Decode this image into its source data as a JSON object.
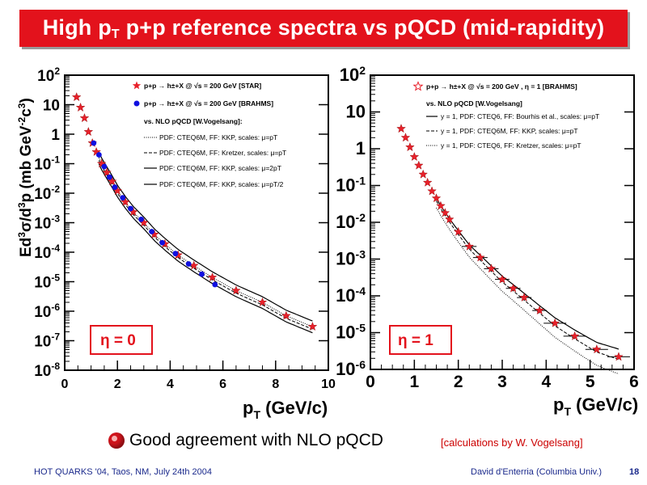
{
  "banner": {
    "title_parts": [
      "High p",
      "T",
      " p+p reference spectra vs pQCD (mid-rapidity)"
    ],
    "color": "#e3121c"
  },
  "chart_data": [
    {
      "type": "scatter",
      "log_y": true,
      "xlabel": "pT (GeV/c)",
      "ylabel": "Ed3σ/d3p (mb GeV-2c3)",
      "xlim": [
        0,
        10
      ],
      "ylim": [
        1e-08,
        100
      ],
      "x_ticks": [
        "0",
        "2",
        "4",
        "6",
        "8",
        "10"
      ],
      "y_ticks": [
        "10-8",
        "10-7",
        "10-6",
        "10-5",
        "10-4",
        "10-3",
        "10-2",
        "10-1",
        "1",
        "10",
        "102"
      ],
      "rapidity_tag": "η = 0",
      "legend": {
        "star": "p+p → h±+X @ √s = 200 GeV [STAR]",
        "brahms": "p+p → h±+X @ √s = 200 GeV [BRAHMS]",
        "header": "vs. NLO pQCD [W.Vogelsang]:",
        "curves": [
          "PDF: CTEQ6M, FF: KKP, scales: μ=pT",
          "PDF: CTEQ6M, FF: Kretzer, scales: μ=pT",
          "PDF: CTEQ6M, FF: KKP, scales: μ=2pT",
          "PDF: CTEQ6M, FF: KKP, scales: μ=pT/2"
        ]
      },
      "series": [
        {
          "name": "STAR",
          "marker": "star",
          "color": "#e8202a",
          "x": [
            0.45,
            0.6,
            0.75,
            0.9,
            1.05,
            1.2,
            1.4,
            1.6,
            1.8,
            2.0,
            2.3,
            2.6,
            3.0,
            3.4,
            3.8,
            4.3,
            4.9,
            5.6,
            6.5,
            7.5,
            8.4,
            9.4
          ],
          "y": [
            18,
            8,
            3.5,
            1.2,
            0.5,
            0.25,
            0.1,
            0.05,
            0.025,
            0.012,
            0.005,
            0.0023,
            0.001,
            0.0004,
            0.00019,
            8e-05,
            3.5e-05,
            1.4e-05,
            5e-06,
            2e-06,
            7e-07,
            3e-07
          ]
        },
        {
          "name": "BRAHMS",
          "marker": "circle",
          "color": "#1010e0",
          "x": [
            1.1,
            1.3,
            1.5,
            1.7,
            1.9,
            2.2,
            2.5,
            2.9,
            3.3,
            3.7,
            4.2,
            4.7,
            5.2,
            5.7
          ],
          "y": [
            0.5,
            0.2,
            0.08,
            0.035,
            0.016,
            0.007,
            0.003,
            0.0013,
            0.0005,
            0.00021,
            9e-05,
            4e-05,
            1.8e-05,
            8e-06
          ]
        }
      ]
    },
    {
      "type": "scatter",
      "log_y": true,
      "xlabel": "pT (GeV/c)",
      "xlim": [
        0,
        6
      ],
      "ylim": [
        1e-06,
        100
      ],
      "x_ticks": [
        "0",
        "1",
        "2",
        "3",
        "4",
        "5",
        "6"
      ],
      "y_ticks": [
        "10-6",
        "10-5",
        "10-4",
        "10-3",
        "10-2",
        "10-1",
        "1",
        "10",
        "102"
      ],
      "rapidity_tag": "η =  1",
      "legend": {
        "brahms": "p+p → h±+X @ √s = 200 GeV , η = 1 [BRAHMS]",
        "header": "vs. NLO pQCD [W.Vogelsang]",
        "curves": [
          "y = 1, PDF: CTEQ6, FF: Bourhis et al., scales: μ=pT",
          "y = 1, PDF: CTEQ6M, FF: KKP, scales: μ=pT",
          "y = 1, PDF: CTEQ6, FF: Kretzer, scales: μ=pT"
        ]
      },
      "series": [
        {
          "name": "BRAHMS",
          "marker": "star",
          "color": "#e8202a",
          "x": [
            0.7,
            0.8,
            0.9,
            1.0,
            1.1,
            1.2,
            1.3,
            1.4,
            1.5,
            1.6,
            1.7,
            1.8,
            2.0,
            2.25,
            2.5,
            2.75,
            3.0,
            3.25,
            3.5,
            3.85,
            4.2,
            4.65,
            5.15,
            5.65
          ],
          "y": [
            3.5,
            2.0,
            1.1,
            0.6,
            0.35,
            0.2,
            0.12,
            0.07,
            0.045,
            0.028,
            0.018,
            0.012,
            0.0055,
            0.0022,
            0.0011,
            0.00055,
            0.00028,
            0.00016,
            9e-05,
            4e-05,
            1.8e-05,
            8e-06,
            3.5e-06,
            2.2e-06
          ]
        }
      ]
    }
  ],
  "bottom": {
    "agreement": "Good agreement with NLO pQCD",
    "credit": "[calculations by W. Vogelsang]"
  },
  "footer": {
    "left": "HOT QUARKS '04, Taos, NM, July 24th 2004",
    "right": "David d'Enterria (Columbia Univ.)",
    "page": "18"
  }
}
